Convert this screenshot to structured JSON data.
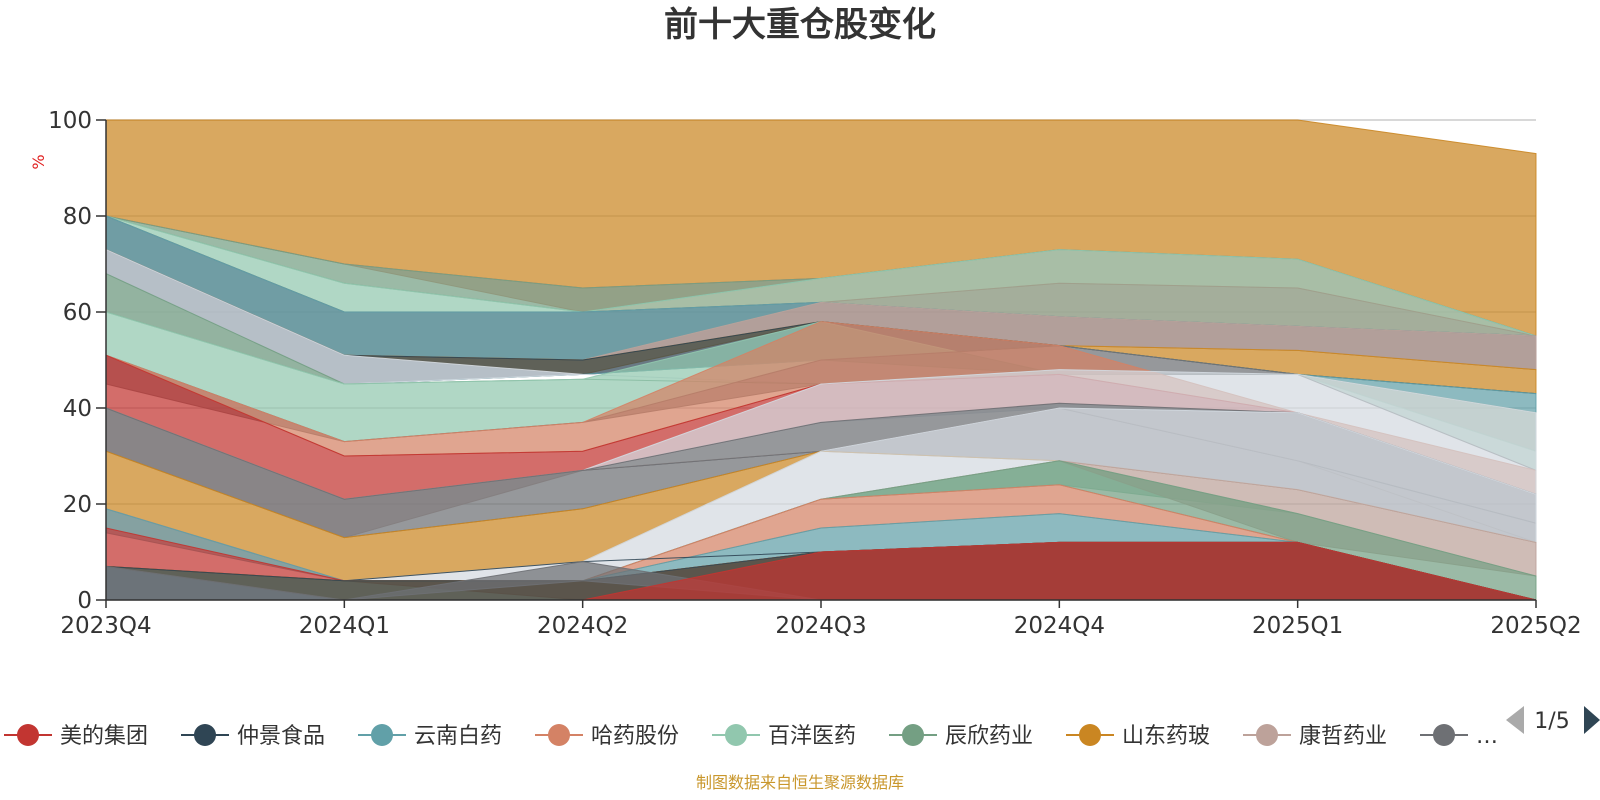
{
  "chart_data": {
    "type": "area",
    "title": "前十大重仓股变化",
    "unit": "%",
    "categories": [
      "2023Q4",
      "2024Q1",
      "2024Q2",
      "2024Q3",
      "2024Q4",
      "2025Q1",
      "2025Q2"
    ],
    "ylim": [
      0,
      100
    ],
    "yticks": [
      0,
      20,
      40,
      60,
      80,
      100
    ],
    "grid": true,
    "legend_position": "bottom",
    "legend": {
      "items": [
        {
          "name": "美的集团",
          "color": "#c23531"
        },
        {
          "name": "仲景食品",
          "color": "#2f4554"
        },
        {
          "name": "云南白药",
          "color": "#61a0a8"
        },
        {
          "name": "哈药股份",
          "color": "#d48265"
        },
        {
          "name": "百洋医药",
          "color": "#91c7ae"
        },
        {
          "name": "辰欣药业",
          "color": "#749f83"
        },
        {
          "name": "山东药玻",
          "color": "#ca8622"
        },
        {
          "name": "康哲药业",
          "color": "#bda29a"
        },
        {
          "name": "…",
          "color": "#6e7074"
        }
      ],
      "page": "1/5"
    },
    "layers": [
      {
        "color": "#ca8622",
        "y0": [
          80,
          70,
          65,
          67,
          73,
          71,
          55
        ],
        "y1": [
          100,
          100,
          100,
          100,
          100,
          100,
          93
        ]
      },
      {
        "color": "#d48265",
        "y0": [
          80,
          70,
          60,
          62,
          66,
          65,
          55
        ],
        "y1": [
          80,
          70,
          65,
          67,
          73,
          71,
          55
        ]
      },
      {
        "color": "#749f83",
        "y0": [
          80,
          66,
          60,
          67,
          73,
          71,
          55
        ],
        "y1": [
          80,
          70,
          65,
          67,
          73,
          71,
          55
        ]
      },
      {
        "color": "#c23531",
        "y0": [
          80,
          60,
          60,
          62,
          59,
          57,
          55
        ],
        "y1": [
          80,
          60,
          60,
          62,
          66,
          65,
          55
        ]
      },
      {
        "color": "#91c7ae",
        "y0": [
          80,
          60,
          60,
          62,
          59,
          57,
          55
        ],
        "y1": [
          80,
          66,
          60,
          67,
          73,
          71,
          55
        ]
      },
      {
        "color": "#6e7074",
        "y0": [
          73,
          51,
          50,
          58,
          53,
          52,
          48
        ],
        "y1": [
          80,
          60,
          60,
          62,
          59,
          57,
          55
        ]
      },
      {
        "color": "#61a0a8",
        "y0": [
          73,
          51,
          50,
          62,
          59,
          57,
          55
        ],
        "y1": [
          80,
          60,
          60,
          62,
          59,
          57,
          55
        ]
      },
      {
        "color": "#bda29a",
        "y0": [
          73,
          51,
          50,
          58,
          53,
          52,
          48
        ],
        "y1": [
          73,
          51,
          50,
          62,
          59,
          57,
          55
        ]
      },
      {
        "color": "#ca8622",
        "y0": [
          73,
          51,
          47,
          58,
          53,
          47,
          43
        ],
        "y1": [
          73,
          51,
          50,
          58,
          53,
          52,
          48
        ]
      },
      {
        "color": "#2f4554",
        "y0": [
          68,
          45,
          47,
          50,
          53,
          47,
          43
        ],
        "y1": [
          73,
          51,
          50,
          58,
          53,
          47,
          43
        ]
      },
      {
        "color": "#61a0a8",
        "y0": [
          68,
          45,
          47,
          50,
          53,
          47,
          39
        ],
        "y1": [
          68,
          45,
          47,
          50,
          53,
          47,
          43
        ]
      },
      {
        "color": "#d4dae1",
        "y0": [
          60,
          45,
          47,
          45,
          47,
          47,
          39
        ],
        "y1": [
          73,
          51,
          47,
          45,
          48,
          47,
          39
        ]
      },
      {
        "color": "#749f83",
        "y0": [
          60,
          45,
          46,
          45,
          47,
          47,
          31
        ],
        "y1": [
          68,
          45,
          46,
          45,
          47,
          47,
          39
        ]
      },
      {
        "color": "#91c7ae",
        "y0": [
          51,
          33,
          37,
          50,
          47,
          47,
          27
        ],
        "y1": [
          60,
          45,
          46,
          58,
          47,
          47,
          31
        ]
      },
      {
        "color": "#6e7074",
        "y0": [
          45,
          33,
          37,
          45,
          47,
          47,
          27
        ],
        "y1": [
          51,
          33,
          37,
          50,
          53,
          47,
          27
        ]
      },
      {
        "color": "#d48265",
        "y0": [
          51,
          30,
          31,
          45,
          47,
          39,
          22
        ],
        "y1": [
          51,
          33,
          37,
          58,
          53,
          39,
          27
        ]
      },
      {
        "color": "#c23531",
        "y0": [
          40,
          21,
          27,
          37,
          41,
          39,
          22
        ],
        "y1": [
          51,
          30,
          31,
          45,
          47,
          39,
          22
        ]
      },
      {
        "color": "#d4dae1",
        "y0": [
          40,
          21,
          27,
          37,
          40,
          39,
          22
        ],
        "y1": [
          40,
          21,
          27,
          45,
          48,
          47,
          39
        ]
      },
      {
        "color": "#6e7074",
        "y0": [
          40,
          21,
          27,
          31,
          40,
          29,
          16
        ],
        "y1": [
          40,
          21,
          27,
          37,
          41,
          39,
          22
        ]
      },
      {
        "color": "#bda29a",
        "y0": [
          31,
          13,
          27,
          31,
          40,
          29,
          12
        ],
        "y1": [
          40,
          21,
          27,
          31,
          40,
          29,
          12
        ]
      },
      {
        "color": "#6e7074",
        "y0": [
          31,
          13,
          19,
          31,
          29,
          23,
          12
        ],
        "y1": [
          40,
          21,
          27,
          31,
          40,
          29,
          16
        ]
      },
      {
        "color": "#ca8622",
        "y0": [
          19,
          4,
          8,
          31,
          29,
          23,
          12
        ],
        "y1": [
          31,
          13,
          19,
          31,
          29,
          23,
          12
        ]
      },
      {
        "color": "#d4dae1",
        "y0": [
          19,
          4,
          4,
          21,
          29,
          23,
          12
        ],
        "y1": [
          19,
          4,
          8,
          31,
          40,
          39,
          22
        ]
      },
      {
        "color": "#91c7ae",
        "y0": [
          19,
          4,
          4,
          21,
          24,
          18,
          5
        ],
        "y1": [
          19,
          4,
          4,
          21,
          29,
          18,
          5
        ]
      },
      {
        "color": "#bda29a",
        "y0": [
          19,
          4,
          4,
          21,
          29,
          12,
          5
        ],
        "y1": [
          19,
          4,
          4,
          21,
          29,
          23,
          12
        ]
      },
      {
        "color": "#749f83",
        "y0": [
          19,
          4,
          4,
          21,
          24,
          12,
          0
        ],
        "y1": [
          19,
          4,
          4,
          21,
          29,
          18,
          5
        ]
      },
      {
        "color": "#d48265",
        "y0": [
          15,
          4,
          4,
          15,
          18,
          12,
          0
        ],
        "y1": [
          19,
          4,
          4,
          21,
          24,
          12,
          0
        ]
      },
      {
        "color": "#61a0a8",
        "y0": [
          14,
          4,
          4,
          10,
          12,
          12,
          0
        ],
        "y1": [
          19,
          4,
          4,
          15,
          18,
          12,
          0
        ]
      },
      {
        "color": "#2f4554",
        "y0": [
          7,
          4,
          8,
          10,
          12,
          12,
          0
        ],
        "y1": [
          7,
          4,
          8,
          10,
          12,
          12,
          0
        ]
      },
      {
        "color": "#c23531",
        "y0": [
          7,
          4,
          0,
          0,
          0,
          0,
          0
        ],
        "y1": [
          15,
          4,
          4,
          10,
          12,
          12,
          0
        ]
      },
      {
        "color": "#ca8622",
        "y0": [
          7,
          0,
          0,
          0,
          0,
          0,
          0
        ],
        "y1": [
          7,
          4,
          4,
          10,
          12,
          12,
          0
        ]
      },
      {
        "color": "#2f4554",
        "y0": [
          0,
          0,
          0,
          0,
          0,
          0,
          0
        ],
        "y1": [
          7,
          4,
          4,
          10,
          12,
          12,
          0
        ]
      },
      {
        "color": "#6e7074",
        "y0": [
          0,
          0,
          4,
          0,
          0,
          0,
          0
        ],
        "y1": [
          7,
          0,
          8,
          0,
          0,
          0,
          0
        ]
      },
      {
        "color": "#c23531",
        "y0": [
          0,
          0,
          0,
          0,
          0,
          0,
          0
        ],
        "y1": [
          0,
          0,
          0,
          10,
          12,
          12,
          0
        ]
      }
    ]
  },
  "source": "制图数据来自恒生聚源数据库"
}
